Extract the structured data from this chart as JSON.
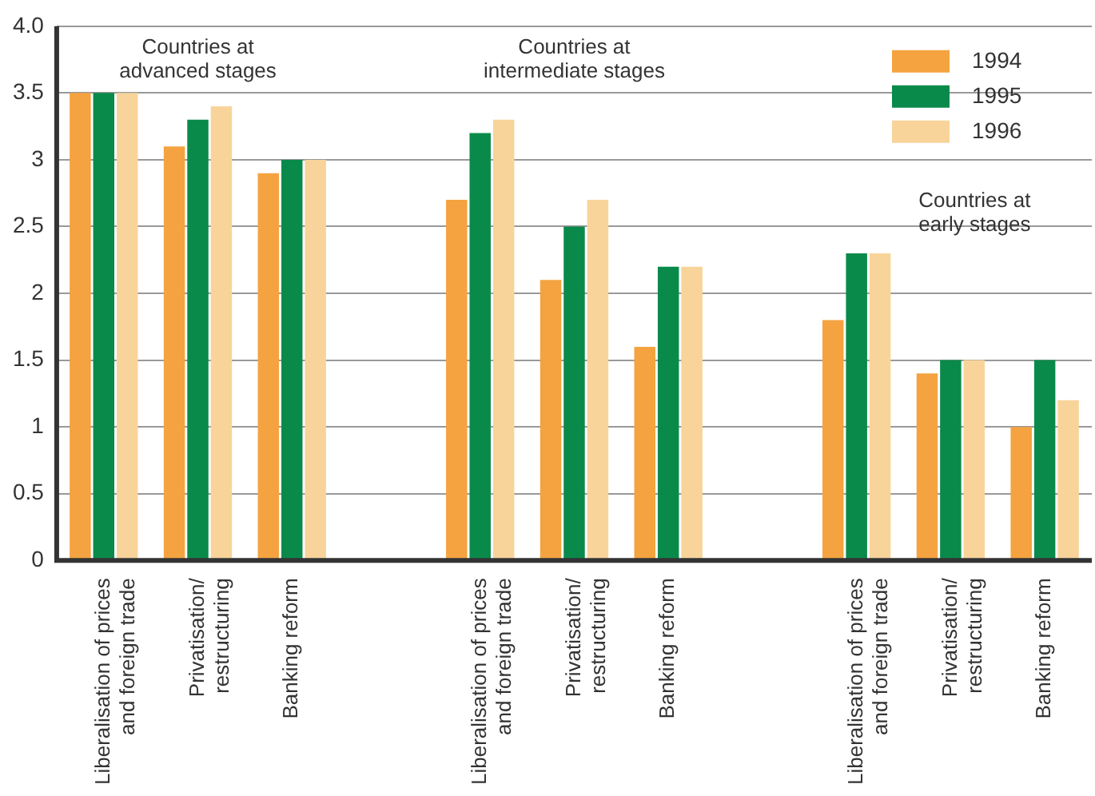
{
  "chart_data": {
    "type": "bar",
    "categories": [
      "Liberalisation of prices\nand foreign trade",
      "Privatisation/\nrestructuring",
      "Banking reform",
      null,
      "Liberalisation of prices\nand foreign trade",
      "Privatisation/\nrestructuring",
      "Banking reform",
      null,
      "Liberalisation of prices\nand foreign trade",
      "Privatisation/\nrestructuring",
      "Banking reform"
    ],
    "series": [
      {
        "name": "1994",
        "color": "#f4a340",
        "values": [
          3.5,
          3.1,
          2.9,
          null,
          2.7,
          2.1,
          1.6,
          null,
          1.8,
          1.4,
          1.0
        ]
      },
      {
        "name": "1995",
        "color": "#0a8a4a",
        "values": [
          3.5,
          3.3,
          3.0,
          null,
          3.2,
          2.5,
          2.2,
          null,
          2.3,
          1.5,
          1.5
        ]
      },
      {
        "name": "1996",
        "color": "#f8d49a",
        "values": [
          3.5,
          3.4,
          3.0,
          null,
          3.3,
          2.7,
          2.2,
          null,
          2.3,
          1.5,
          1.2
        ]
      }
    ],
    "ylim": [
      0,
      4
    ],
    "yticks": [
      0,
      0.5,
      1,
      1.5,
      2,
      2.5,
      3,
      3.5,
      {
        "value": 4,
        "label": "4.0"
      }
    ],
    "grid": "y",
    "legend": "top right",
    "annotations": [
      "Countries at\nadvanced stages",
      "Countries at\nintermediate stages",
      "Countries at\nearly stages"
    ]
  }
}
